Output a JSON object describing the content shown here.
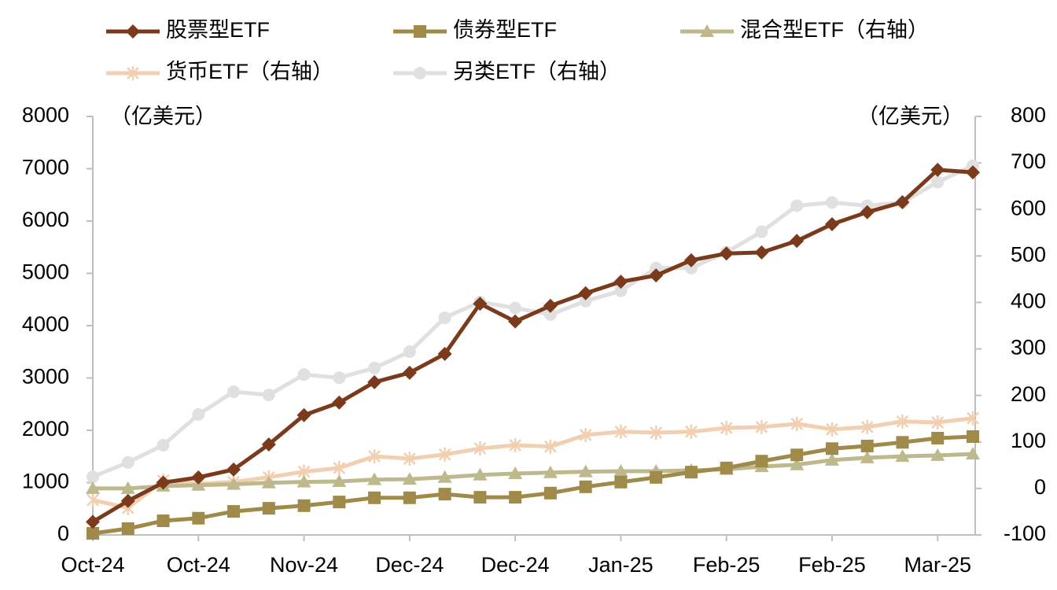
{
  "chart_data": {
    "type": "line",
    "y_label": "（亿美元）",
    "y2_label": "（亿美元）",
    "categories": [
      "Oct-24",
      null,
      null,
      "Oct-24",
      null,
      null,
      "Nov-24",
      null,
      null,
      "Dec-24",
      null,
      null,
      "Dec-24",
      null,
      null,
      "Jan-25",
      null,
      null,
      "Feb-25",
      null,
      null,
      "Feb-25",
      null,
      null,
      "Mar-25",
      null
    ],
    "ylim": [
      0,
      8000
    ],
    "yticks": [
      0,
      1000,
      2000,
      3000,
      4000,
      5000,
      6000,
      7000,
      8000
    ],
    "y2lim": [
      -100,
      800
    ],
    "y2ticks": [
      -100,
      0,
      100,
      200,
      300,
      400,
      500,
      600,
      700,
      800
    ],
    "series": [
      {
        "name": "股票型ETF",
        "color": "#7b3a1c",
        "marker": "diamond",
        "values": [
          250,
          650,
          1000,
          1100,
          1250,
          1730,
          2290,
          2530,
          2920,
          3100,
          3460,
          4420,
          4080,
          4380,
          4620,
          4840,
          4960,
          5250,
          5380,
          5400,
          5620,
          5940,
          6170,
          6360,
          6980,
          6930
        ]
      },
      {
        "name": "债券型ETF",
        "color": "#a08a4a",
        "marker": "square",
        "values": [
          30,
          120,
          270,
          320,
          450,
          510,
          560,
          630,
          710,
          710,
          780,
          720,
          720,
          800,
          920,
          1010,
          1100,
          1200,
          1280,
          1410,
          1530,
          1650,
          1700,
          1770,
          1850,
          1880
        ]
      },
      {
        "name": "混合型ETF（右轴）",
        "color": "#bdb98c",
        "marker": "triangle",
        "axis": "y2",
        "values": [
          0,
          0,
          5,
          7,
          9,
          12,
          14,
          15,
          19,
          20,
          24,
          29,
          32,
          34,
          36,
          37,
          37,
          39,
          41,
          47,
          51,
          61,
          66,
          69,
          71,
          74
        ]
      },
      {
        "name": "货币ETF（右轴）",
        "color": "#f2cfb0",
        "marker": "star",
        "axis": "y2",
        "values": [
          -25,
          -42,
          17,
          10,
          14,
          24,
          36,
          44,
          69,
          64,
          73,
          86,
          93,
          90,
          115,
          122,
          120,
          122,
          130,
          132,
          139,
          127,
          132,
          144,
          142,
          151
        ]
      },
      {
        "name": "另类ETF（右轴）",
        "color": "#e0e0e0",
        "marker": "circle",
        "axis": "y2",
        "values": [
          25,
          56,
          93,
          159,
          208,
          201,
          245,
          238,
          259,
          294,
          367,
          401,
          388,
          374,
          403,
          425,
          474,
          474,
          508,
          552,
          608,
          615,
          608,
          615,
          659,
          694
        ]
      }
    ]
  }
}
